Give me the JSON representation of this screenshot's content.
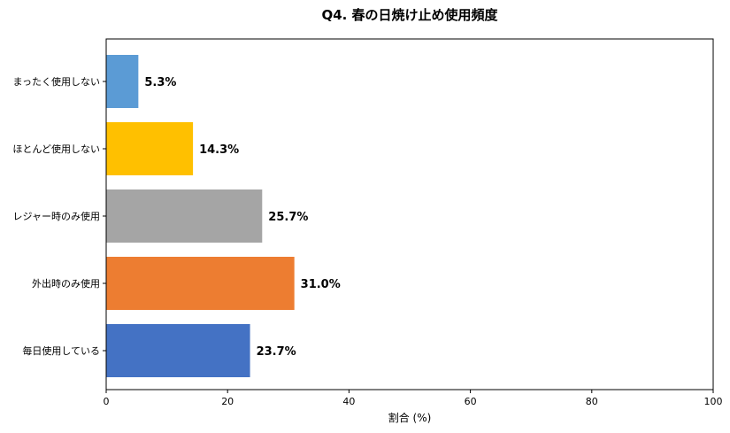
{
  "chart_data": {
    "type": "bar",
    "orientation": "horizontal",
    "title": "Q4. 春の日焼け止め使用頻度",
    "xlabel": "割合 (%)",
    "ylabel": "",
    "xlim": [
      0,
      100
    ],
    "xticks": [
      0,
      20,
      40,
      60,
      80,
      100
    ],
    "grid": false,
    "categories": [
      "まったく使用しない",
      "ほとんど使用しない",
      "レジャー時のみ使用",
      "外出時のみ使用",
      "毎日使用している"
    ],
    "values": [
      5.3,
      14.3,
      25.7,
      31.0,
      23.7
    ],
    "value_labels": [
      "5.3%",
      "14.3%",
      "25.7%",
      "31.0%",
      "23.7%"
    ],
    "colors": [
      "#5b9bd5",
      "#ffc000",
      "#a5a5a5",
      "#ed7d31",
      "#4472c4"
    ]
  }
}
